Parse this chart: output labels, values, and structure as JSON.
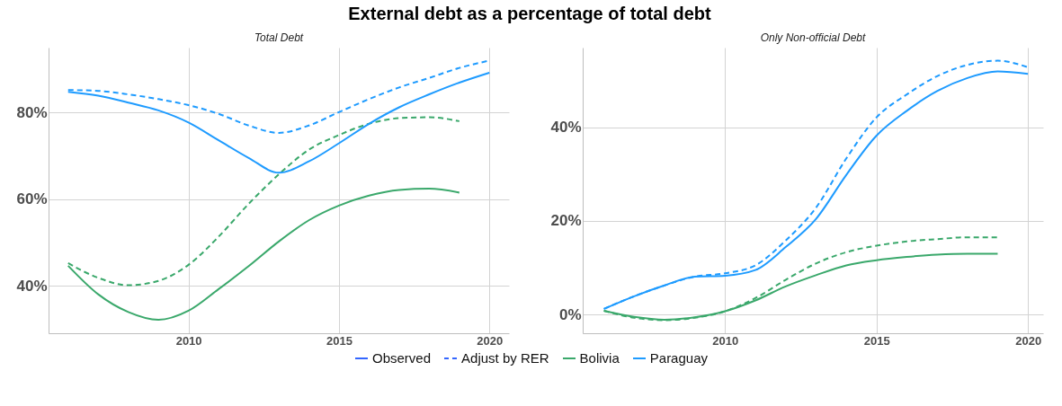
{
  "chart_data": [
    {
      "type": "line",
      "title": "External debt as a percentage of total debt",
      "subtitle": "Total Debt",
      "annotations": [
        "Observed",
        "Adjust by RER"
      ],
      "legend": "bottom",
      "grid": true,
      "x": [
        2006,
        2007,
        2008,
        2009,
        2010,
        2011,
        2012,
        2013,
        2014,
        2015,
        2016,
        2017,
        2018,
        2019,
        2020
      ],
      "xlim": [
        2005.35,
        2020.65
      ],
      "xticks": [
        2010,
        2015,
        2020
      ],
      "ylim": [
        29,
        95
      ],
      "yticks": [
        {
          "value": 40,
          "label": "40%"
        },
        {
          "value": 60,
          "label": "60%"
        },
        {
          "value": 80,
          "label": "80%"
        }
      ],
      "series": [
        {
          "name": "Bolivia",
          "color": "#3aa86b",
          "line_style": "solid",
          "values": [
            44.6,
            38,
            33.9,
            32.1,
            34.2,
            39.2,
            44.5,
            50.2,
            55.1,
            58.5,
            60.8,
            62.1,
            62.4,
            61.5,
            null
          ]
        },
        {
          "color": "#3aa86b",
          "line_style": "dashed",
          "values": [
            45.2,
            41.8,
            40.1,
            41.1,
            44.8,
            51.3,
            58.9,
            65.7,
            71.4,
            74.8,
            77.4,
            78.7,
            78.9,
            78,
            null
          ]
        },
        {
          "name": "Paraguay",
          "color": "#1e9bff",
          "line_style": "solid",
          "values": [
            84.8,
            83.9,
            82.3,
            80.5,
            77.7,
            73.6,
            69.5,
            66.1,
            68.7,
            72.9,
            77.4,
            81.2,
            84.2,
            86.9,
            89.2
          ]
        },
        {
          "color": "#1e9bff",
          "line_style": "dashed",
          "values": [
            85.2,
            85,
            84.2,
            83.1,
            81.7,
            79.7,
            77,
            75.3,
            77,
            80.1,
            83.1,
            85.8,
            88,
            90.3,
            92
          ]
        }
      ]
    },
    {
      "type": "line",
      "subtitle": "Only Non-official Debt",
      "grid": true,
      "x": [
        2006,
        2007,
        2008,
        2009,
        2010,
        2011,
        2012,
        2013,
        2014,
        2015,
        2016,
        2017,
        2018,
        2019,
        2020
      ],
      "xlim": [
        2005.3,
        2020.5
      ],
      "xticks": [
        2010,
        2015,
        2020
      ],
      "ylim": [
        -4,
        57
      ],
      "yticks": [
        {
          "value": 0,
          "label": "0%"
        },
        {
          "value": 20,
          "label": "20%"
        },
        {
          "value": 40,
          "label": "40%"
        }
      ],
      "series": [
        {
          "name": "Bolivia",
          "color": "#3aa86b",
          "line_style": "solid",
          "values": [
            0.8,
            -0.5,
            -1.1,
            -0.6,
            0.7,
            3,
            6,
            8.4,
            10.5,
            11.6,
            12.3,
            12.8,
            13,
            13,
            null
          ]
        },
        {
          "color": "#3aa86b",
          "line_style": "dashed",
          "values": [
            0.8,
            -0.7,
            -1.2,
            -0.7,
            0.7,
            3.5,
            7.4,
            10.9,
            13.3,
            14.7,
            15.6,
            16.1,
            16.5,
            16.5,
            null
          ]
        },
        {
          "name": "Paraguay",
          "color": "#1e9bff",
          "line_style": "solid",
          "values": [
            1.2,
            3.9,
            6.2,
            8.1,
            8.3,
            9.5,
            14.4,
            20.4,
            29.8,
            38.2,
            43.5,
            47.7,
            50.5,
            51.9,
            51.4
          ]
        },
        {
          "color": "#1e9bff",
          "line_style": "dashed",
          "values": [
            1.2,
            3.9,
            6.2,
            8.1,
            8.8,
            10.5,
            15.8,
            22.8,
            33.3,
            42.1,
            47,
            50.9,
            53.3,
            54.2,
            52.8
          ]
        }
      ]
    }
  ]
}
